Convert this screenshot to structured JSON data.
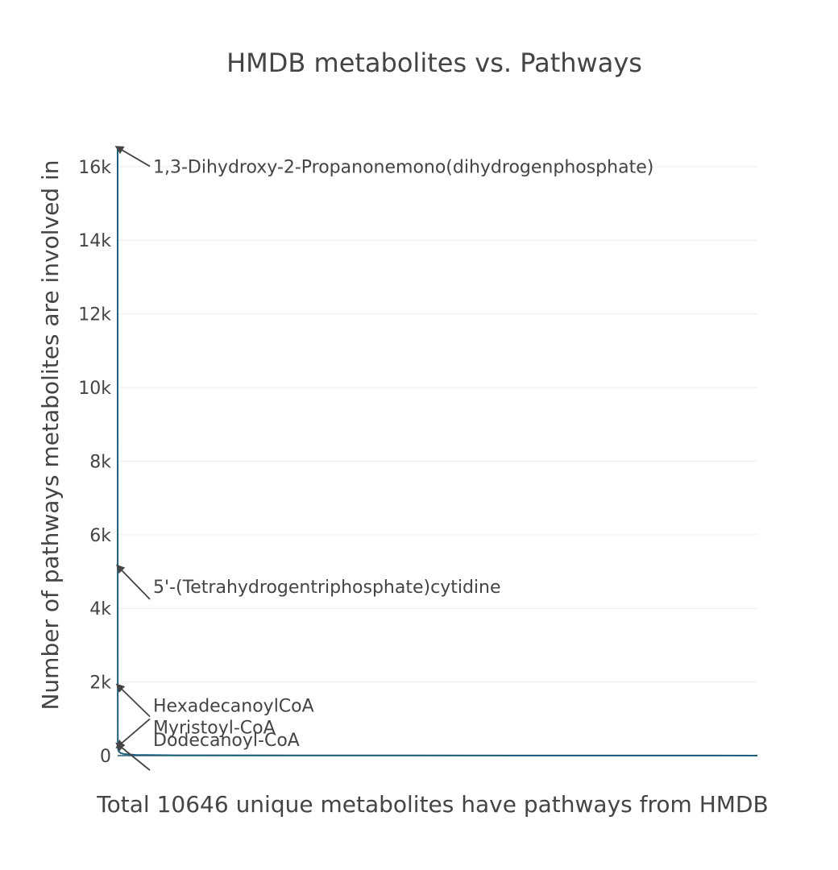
{
  "chart_data": {
    "type": "line",
    "title": "HMDB metabolites vs. Pathways",
    "xlabel": "Total 10646 unique metabolites have pathways from HMDB",
    "ylabel": "Number of pathways metabolites are involved in",
    "ylim": [
      0,
      16500
    ],
    "xlim": [
      0,
      10646
    ],
    "yticks": [
      0,
      2000,
      4000,
      6000,
      8000,
      10000,
      12000,
      14000,
      16000
    ],
    "ytick_labels": [
      "0",
      "2k",
      "4k",
      "6k",
      "8k",
      "10k",
      "12k",
      "14k",
      "16k"
    ],
    "grid": true,
    "line_color": "#1f5f7a",
    "series": [
      {
        "x": [
          0,
          1,
          2,
          3,
          4,
          5,
          10,
          20,
          50,
          100,
          300,
          1000,
          10646
        ],
        "values": [
          16490,
          5080,
          1850,
          340,
          260,
          200,
          150,
          110,
          70,
          45,
          20,
          8,
          1
        ]
      }
    ],
    "annotations": [
      {
        "text": "1,3-Dihydroxy-2-Propanonemono(dihydrogenphosphate)",
        "y": 16490
      },
      {
        "text": "5'-(Tetrahydrogentriphosphate)cytidine",
        "y": 5080
      },
      {
        "text": "HexadecanoylCoA",
        "y": 1850
      },
      {
        "text": "Myristoyl-CoA",
        "y": 340
      },
      {
        "text": "Dodecanoyl-CoA",
        "y": 260
      }
    ]
  }
}
